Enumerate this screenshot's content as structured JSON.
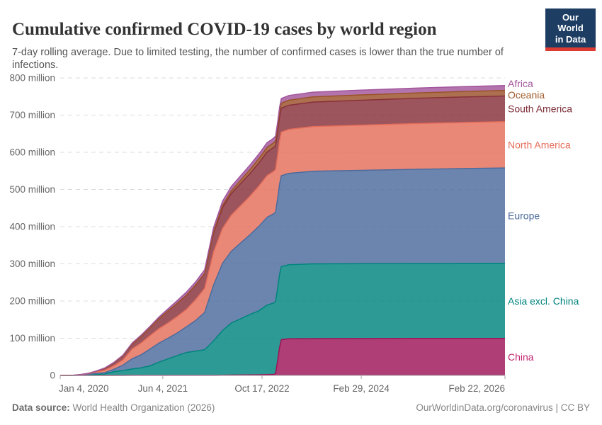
{
  "header": {
    "title": "Cumulative confirmed COVID-19 cases by world region",
    "subtitle": "7-day rolling average. Due to limited testing, the number of confirmed cases is lower than the true number of infections.",
    "logo": {
      "line1": "Our World",
      "line2": "in Data",
      "bg_color": "#1d3d63",
      "bar_color": "#dc3b32"
    }
  },
  "footer": {
    "source_label": "Data source:",
    "source_value": " World Health Organization (2026)",
    "credit": "OurWorldinData.org/coronavirus | CC BY"
  },
  "chart_data": {
    "type": "area",
    "stacked": true,
    "title": "Cumulative confirmed COVID-19 cases by world region",
    "unit": "million cases",
    "grid": "dashed horizontal",
    "legend_position": "right-of-plot, colored labels",
    "xlabel": "",
    "ylabel": "",
    "ylim": [
      0,
      800
    ],
    "y_ticks": [
      0,
      100,
      200,
      300,
      400,
      500,
      600,
      700,
      800
    ],
    "y_tick_suffix": " million",
    "x_range_days": [
      0,
      2241
    ],
    "x_tick_days": [
      0,
      517,
      1017,
      1517,
      2241
    ],
    "x_tick_labels": [
      "Jan 4, 2020",
      "Jun 4, 2021",
      "Oct 17, 2022",
      "Feb 29, 2024",
      "Feb 22, 2026"
    ],
    "x_days": [
      0,
      56,
      103,
      139,
      179,
      224,
      271,
      316,
      363,
      408,
      453,
      497,
      544,
      589,
      636,
      681,
      728,
      773,
      818,
      862,
      909,
      954,
      1001,
      1042,
      1076,
      1085,
      1096,
      1105,
      1114,
      1152,
      1273,
      1517,
      1793,
      2017,
      2241
    ],
    "axis_color": "#a5a5a5",
    "grid_color": "#dcdcdc",
    "tick_label_color": "#666666",
    "series": [
      {
        "name": "china",
        "label": "China",
        "color": "#9c1357",
        "label_color": "#c22470",
        "values": [
          0,
          0.08,
          0.083,
          0.084,
          0.085,
          0.089,
          0.091,
          0.093,
          0.096,
          0.1,
          0.102,
          0.105,
          0.119,
          0.123,
          0.127,
          0.128,
          0.131,
          0.17,
          0.6,
          0.9,
          1.2,
          1.4,
          1.7,
          2.2,
          2.8,
          5,
          40,
          75,
          96,
          98.5,
          99,
          99.3,
          99.35,
          99.4,
          99.4
        ]
      },
      {
        "name": "asia-excl-china",
        "label": "Asia excl. China",
        "color": "#00847e",
        "label_color": "#00847e",
        "values": [
          0,
          0.006,
          0.35,
          0.75,
          2.4,
          3.6,
          10.3,
          13,
          17.3,
          20.5,
          25.6,
          35.5,
          44.5,
          53,
          61.5,
          65,
          68.9,
          93,
          120,
          140,
          151,
          162,
          172,
          187,
          192,
          193.5,
          195,
          196,
          197,
          199,
          201,
          201.2,
          201.5,
          201.8,
          202
        ]
      },
      {
        "name": "europe",
        "label": "Europe",
        "color": "#4c6a9c",
        "label_color": "#4c6a9c",
        "values": [
          0,
          0.002,
          1,
          1.95,
          2.75,
          3.8,
          6.3,
          14.5,
          27.6,
          35,
          45.2,
          51,
          55.5,
          61,
          69,
          82,
          100.5,
          150,
          181,
          193,
          204,
          214,
          227,
          236,
          240,
          241,
          242,
          243,
          244,
          246,
          249,
          251,
          253.5,
          255,
          256.6
        ]
      },
      {
        "name": "north-america",
        "label": "North America",
        "color": "#e56e5a",
        "label_color": "#e56e5a",
        "values": [
          0,
          0,
          0.7,
          1.8,
          3.5,
          6.3,
          9,
          14,
          26,
          31.5,
          35.7,
          38.7,
          41.1,
          44,
          46.8,
          55.5,
          64.3,
          88.5,
          93.5,
          97,
          100,
          103,
          108,
          112,
          114,
          114.5,
          115.5,
          116,
          117,
          118,
          120,
          121.5,
          122.8,
          123.7,
          124.5
        ]
      },
      {
        "name": "south-america",
        "label": "South America",
        "color": "#883039",
        "label_color": "#7c2d36",
        "values": [
          0,
          0,
          0.07,
          0.55,
          2.25,
          5,
          8,
          11,
          13.5,
          17.5,
          21.2,
          26.5,
          32.5,
          35.5,
          38,
          39,
          40,
          51.5,
          56,
          58,
          59.5,
          61,
          62.5,
          63.3,
          64,
          64.1,
          64.3,
          64.5,
          64.7,
          65,
          66,
          67,
          68,
          68.6,
          69
        ]
      },
      {
        "name": "oceania",
        "label": "Oceania",
        "color": "#9a5129",
        "label_color": "#a25c2d",
        "values": [
          0,
          0,
          0.007,
          0.009,
          0.011,
          0.02,
          0.031,
          0.035,
          0.046,
          0.05,
          0.056,
          0.065,
          0.083,
          0.13,
          0.23,
          0.41,
          0.61,
          3,
          5.7,
          7.5,
          9.2,
          10.5,
          11.8,
          12.6,
          13,
          13.05,
          13.1,
          13.2,
          13.3,
          13.5,
          13.9,
          14.2,
          14.5,
          14.8,
          15
        ]
      },
      {
        "name": "africa",
        "label": "Africa",
        "color": "#a2559c",
        "label_color": "#a2559c",
        "values": [
          0,
          0,
          0.017,
          0.095,
          0.45,
          1.1,
          1.5,
          2,
          2.8,
          3.8,
          4.2,
          4.8,
          5.7,
          7.4,
          8.4,
          8.7,
          9.9,
          11.3,
          11.6,
          11.8,
          12,
          12.2,
          12.4,
          12.5,
          12.6,
          12.62,
          12.65,
          12.68,
          12.7,
          12.75,
          12.85,
          12.95,
          13,
          13.05,
          13.1
        ]
      }
    ]
  }
}
